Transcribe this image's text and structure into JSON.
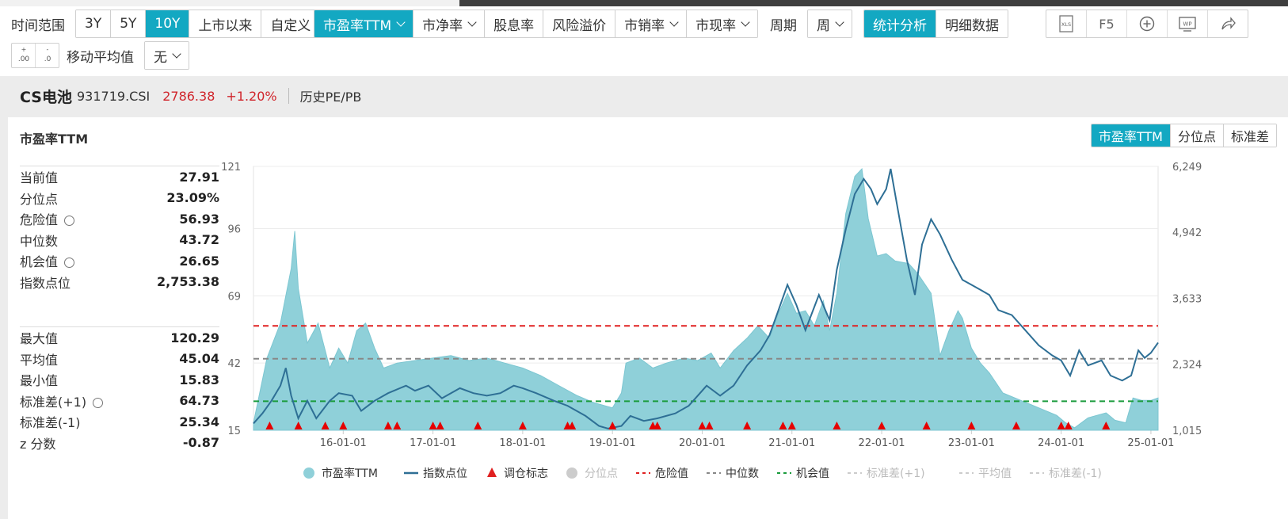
{
  "toolbar": {
    "time_range_label": "时间范围",
    "ranges": [
      "3Y",
      "5Y",
      "10Y",
      "上市以来",
      "自定义"
    ],
    "active_range": "10Y",
    "metrics": [
      "市盈率TTM",
      "市净率",
      "股息率",
      "风险溢价",
      "市销率",
      "市现率"
    ],
    "active_metric": "市盈率TTM",
    "period_label": "周期",
    "period_value": "周",
    "view_tabs": [
      "统计分析",
      "明细数据"
    ],
    "active_view": "统计分析",
    "icons": [
      "xls-icon",
      "f5-refresh-icon",
      "add-icon",
      "wps-icon",
      "share-icon"
    ],
    "f5_label": "F5",
    "xls_label": "XLS",
    "wp_label": "WP",
    "moving_avg_label": "移动平均值",
    "moving_avg_value": "无"
  },
  "header": {
    "name": "CS电池",
    "code": "931719.CSI",
    "price": "2786.38",
    "change": "+1.20%",
    "link": "历史PE/PB"
  },
  "panel": {
    "title": "市盈率TTM",
    "seg_tabs": [
      "市盈率TTM",
      "分位点",
      "标准差"
    ],
    "active_seg": "市盈率TTM"
  },
  "stats_top": [
    {
      "label": "当前值",
      "value": "27.91",
      "gear": false
    },
    {
      "label": "分位点",
      "value": "23.09%",
      "gear": false
    },
    {
      "label": "危险值",
      "value": "56.93",
      "gear": true
    },
    {
      "label": "中位数",
      "value": "43.72",
      "gear": false
    },
    {
      "label": "机会值",
      "value": "26.65",
      "gear": true
    },
    {
      "label": "指数点位",
      "value": "2,753.38",
      "gear": false
    }
  ],
  "stats_bottom": [
    {
      "label": "最大值",
      "value": "120.29",
      "gear": false
    },
    {
      "label": "平均值",
      "value": "45.04",
      "gear": false
    },
    {
      "label": "最小值",
      "value": "15.83",
      "gear": false
    },
    {
      "label": "标准差(+1)",
      "value": "64.73",
      "gear": true
    },
    {
      "label": "标准差(-1)",
      "value": "25.34",
      "gear": false
    },
    {
      "label": "z 分数",
      "value": "-0.87",
      "gear": false
    }
  ],
  "colors": {
    "accent": "#13a8c2",
    "pe_area": "#8fd0d9",
    "index_line": "#2e6f95",
    "danger": "#e02020",
    "median": "#888888",
    "opportunity": "#1a9b3c",
    "up": "#d0242b"
  },
  "chart_data": {
    "type": "area",
    "x_ticks": [
      "16-01-01",
      "17-01-01",
      "18-01-01",
      "19-01-01",
      "20-01-01",
      "21-01-01",
      "22-01-01",
      "23-01-01",
      "24-01-01",
      "25-01-01"
    ],
    "y_left_ticks": [
      "15",
      "42",
      "69",
      "96",
      "121"
    ],
    "y_right_ticks": [
      "1,015",
      "2,324",
      "3,633",
      "4,942",
      "6,249"
    ],
    "ylim_left": [
      15,
      121
    ],
    "ylim_right": [
      1015,
      6249
    ],
    "xlim": [
      2015.0,
      2025.08
    ],
    "reference_lines": [
      {
        "name": "危险值",
        "value": 56.93,
        "color": "#e02020",
        "style": "dashed"
      },
      {
        "name": "中位数",
        "value": 43.72,
        "color": "#888888",
        "style": "dashed"
      },
      {
        "name": "机会值",
        "value": 26.65,
        "color": "#1a9b3c",
        "style": "dashed"
      }
    ],
    "series": [
      {
        "name": "市盈率TTM",
        "kind": "area",
        "points": [
          [
            2015.0,
            18
          ],
          [
            2015.15,
            44
          ],
          [
            2015.3,
            58
          ],
          [
            2015.42,
            80
          ],
          [
            2015.46,
            95
          ],
          [
            2015.5,
            72
          ],
          [
            2015.6,
            50
          ],
          [
            2015.72,
            58
          ],
          [
            2015.85,
            40
          ],
          [
            2015.95,
            48
          ],
          [
            2016.05,
            42
          ],
          [
            2016.15,
            55
          ],
          [
            2016.25,
            58
          ],
          [
            2016.35,
            48
          ],
          [
            2016.45,
            40
          ],
          [
            2016.6,
            42
          ],
          [
            2016.8,
            43
          ],
          [
            2017.0,
            44
          ],
          [
            2017.2,
            45
          ],
          [
            2017.4,
            43
          ],
          [
            2017.6,
            44
          ],
          [
            2017.8,
            42
          ],
          [
            2018.0,
            40
          ],
          [
            2018.2,
            37
          ],
          [
            2018.4,
            33
          ],
          [
            2018.6,
            29
          ],
          [
            2018.8,
            26
          ],
          [
            2019.0,
            24
          ],
          [
            2019.1,
            30
          ],
          [
            2019.15,
            42
          ],
          [
            2019.3,
            44
          ],
          [
            2019.45,
            40
          ],
          [
            2019.6,
            42
          ],
          [
            2019.8,
            44
          ],
          [
            2019.95,
            43
          ],
          [
            2020.1,
            46
          ],
          [
            2020.2,
            40
          ],
          [
            2020.35,
            47
          ],
          [
            2020.5,
            52
          ],
          [
            2020.62,
            57
          ],
          [
            2020.75,
            52
          ],
          [
            2020.85,
            62
          ],
          [
            2020.95,
            70
          ],
          [
            2021.05,
            62
          ],
          [
            2021.15,
            63
          ],
          [
            2021.25,
            57
          ],
          [
            2021.35,
            67
          ],
          [
            2021.42,
            55
          ],
          [
            2021.5,
            70
          ],
          [
            2021.6,
            102
          ],
          [
            2021.7,
            117
          ],
          [
            2021.78,
            120
          ],
          [
            2021.85,
            100
          ],
          [
            2021.95,
            85
          ],
          [
            2022.05,
            86
          ],
          [
            2022.15,
            83
          ],
          [
            2022.3,
            82
          ],
          [
            2022.4,
            78
          ],
          [
            2022.55,
            70
          ],
          [
            2022.65,
            45
          ],
          [
            2022.75,
            55
          ],
          [
            2022.85,
            63
          ],
          [
            2022.9,
            60
          ],
          [
            2023.0,
            48
          ],
          [
            2023.1,
            42
          ],
          [
            2023.2,
            38
          ],
          [
            2023.35,
            30
          ],
          [
            2023.55,
            27
          ],
          [
            2023.75,
            24
          ],
          [
            2023.95,
            21
          ],
          [
            2024.05,
            18
          ],
          [
            2024.15,
            16
          ],
          [
            2024.3,
            20
          ],
          [
            2024.5,
            22
          ],
          [
            2024.6,
            19
          ],
          [
            2024.72,
            18
          ],
          [
            2024.8,
            28
          ],
          [
            2024.9,
            27
          ],
          [
            2025.0,
            27
          ],
          [
            2025.08,
            28
          ]
        ]
      },
      {
        "name": "指数点位",
        "kind": "line",
        "axis": "right",
        "points": [
          [
            2015.0,
            1150
          ],
          [
            2015.1,
            1350
          ],
          [
            2015.2,
            1600
          ],
          [
            2015.3,
            1900
          ],
          [
            2015.36,
            2250
          ],
          [
            2015.42,
            1700
          ],
          [
            2015.5,
            1250
          ],
          [
            2015.6,
            1600
          ],
          [
            2015.7,
            1250
          ],
          [
            2015.85,
            1600
          ],
          [
            2015.95,
            1750
          ],
          [
            2016.1,
            1700
          ],
          [
            2016.2,
            1400
          ],
          [
            2016.35,
            1600
          ],
          [
            2016.5,
            1750
          ],
          [
            2016.7,
            1900
          ],
          [
            2016.8,
            1800
          ],
          [
            2016.95,
            1900
          ],
          [
            2017.1,
            1650
          ],
          [
            2017.3,
            1850
          ],
          [
            2017.45,
            1750
          ],
          [
            2017.6,
            1700
          ],
          [
            2017.75,
            1750
          ],
          [
            2017.9,
            1900
          ],
          [
            2018.0,
            1850
          ],
          [
            2018.15,
            1750
          ],
          [
            2018.35,
            1600
          ],
          [
            2018.5,
            1500
          ],
          [
            2018.7,
            1300
          ],
          [
            2018.85,
            1100
          ],
          [
            2018.95,
            1050
          ],
          [
            2019.1,
            1100
          ],
          [
            2019.2,
            1300
          ],
          [
            2019.35,
            1200
          ],
          [
            2019.5,
            1250
          ],
          [
            2019.7,
            1350
          ],
          [
            2019.85,
            1500
          ],
          [
            2019.95,
            1700
          ],
          [
            2020.05,
            1900
          ],
          [
            2020.2,
            1700
          ],
          [
            2020.35,
            1900
          ],
          [
            2020.5,
            2300
          ],
          [
            2020.65,
            2600
          ],
          [
            2020.75,
            2900
          ],
          [
            2020.85,
            3400
          ],
          [
            2020.95,
            3900
          ],
          [
            2021.05,
            3500
          ],
          [
            2021.15,
            3000
          ],
          [
            2021.3,
            3700
          ],
          [
            2021.42,
            3200
          ],
          [
            2021.5,
            4200
          ],
          [
            2021.6,
            5000
          ],
          [
            2021.7,
            5700
          ],
          [
            2021.8,
            6000
          ],
          [
            2021.88,
            5800
          ],
          [
            2021.95,
            5500
          ],
          [
            2022.05,
            5800
          ],
          [
            2022.1,
            6200
          ],
          [
            2022.18,
            5400
          ],
          [
            2022.28,
            4400
          ],
          [
            2022.37,
            3700
          ],
          [
            2022.45,
            4700
          ],
          [
            2022.55,
            5200
          ],
          [
            2022.65,
            4900
          ],
          [
            2022.78,
            4400
          ],
          [
            2022.9,
            4000
          ],
          [
            2023.0,
            3900
          ],
          [
            2023.1,
            3800
          ],
          [
            2023.2,
            3700
          ],
          [
            2023.3,
            3400
          ],
          [
            2023.45,
            3300
          ],
          [
            2023.6,
            3000
          ],
          [
            2023.75,
            2700
          ],
          [
            2023.9,
            2500
          ],
          [
            2024.0,
            2400
          ],
          [
            2024.1,
            2100
          ],
          [
            2024.2,
            2600
          ],
          [
            2024.3,
            2300
          ],
          [
            2024.45,
            2400
          ],
          [
            2024.55,
            2100
          ],
          [
            2024.68,
            2000
          ],
          [
            2024.78,
            2100
          ],
          [
            2024.86,
            2600
          ],
          [
            2024.93,
            2450
          ],
          [
            2025.0,
            2550
          ],
          [
            2025.08,
            2753
          ]
        ]
      }
    ],
    "rebalance_marks": [
      2015.18,
      2015.5,
      2015.8,
      2016.0,
      2016.5,
      2016.6,
      2017.0,
      2017.08,
      2017.5,
      2018.0,
      2018.5,
      2018.55,
      2019.0,
      2019.45,
      2019.5,
      2020.0,
      2020.08,
      2020.5,
      2020.9,
      2021.0,
      2021.5,
      2022.0,
      2022.5,
      2023.0,
      2023.5,
      2024.0,
      2024.08,
      2024.5
    ]
  },
  "legend": [
    {
      "label": "市盈率TTM",
      "kind": "dot",
      "color": "#8fd0d9",
      "faded": false
    },
    {
      "label": "指数点位",
      "kind": "line",
      "color": "#2e6f95",
      "faded": false
    },
    {
      "label": "调仓标志",
      "kind": "triangle",
      "color": "#e02020",
      "faded": false
    },
    {
      "label": "分位点",
      "kind": "dot",
      "color": "#cccccc",
      "faded": true
    },
    {
      "label": "危险值",
      "kind": "dash",
      "color": "#e02020",
      "faded": false
    },
    {
      "label": "中位数",
      "kind": "dash",
      "color": "#888888",
      "faded": false
    },
    {
      "label": "机会值",
      "kind": "dash",
      "color": "#1a9b3c",
      "faded": false
    },
    {
      "label": "标准差(+1)",
      "kind": "dash",
      "color": "#cccccc",
      "faded": true
    },
    {
      "label": "平均值",
      "kind": "dash",
      "color": "#cccccc",
      "faded": true
    },
    {
      "label": "标准差(-1)",
      "kind": "dash",
      "color": "#cccccc",
      "faded": true
    }
  ]
}
